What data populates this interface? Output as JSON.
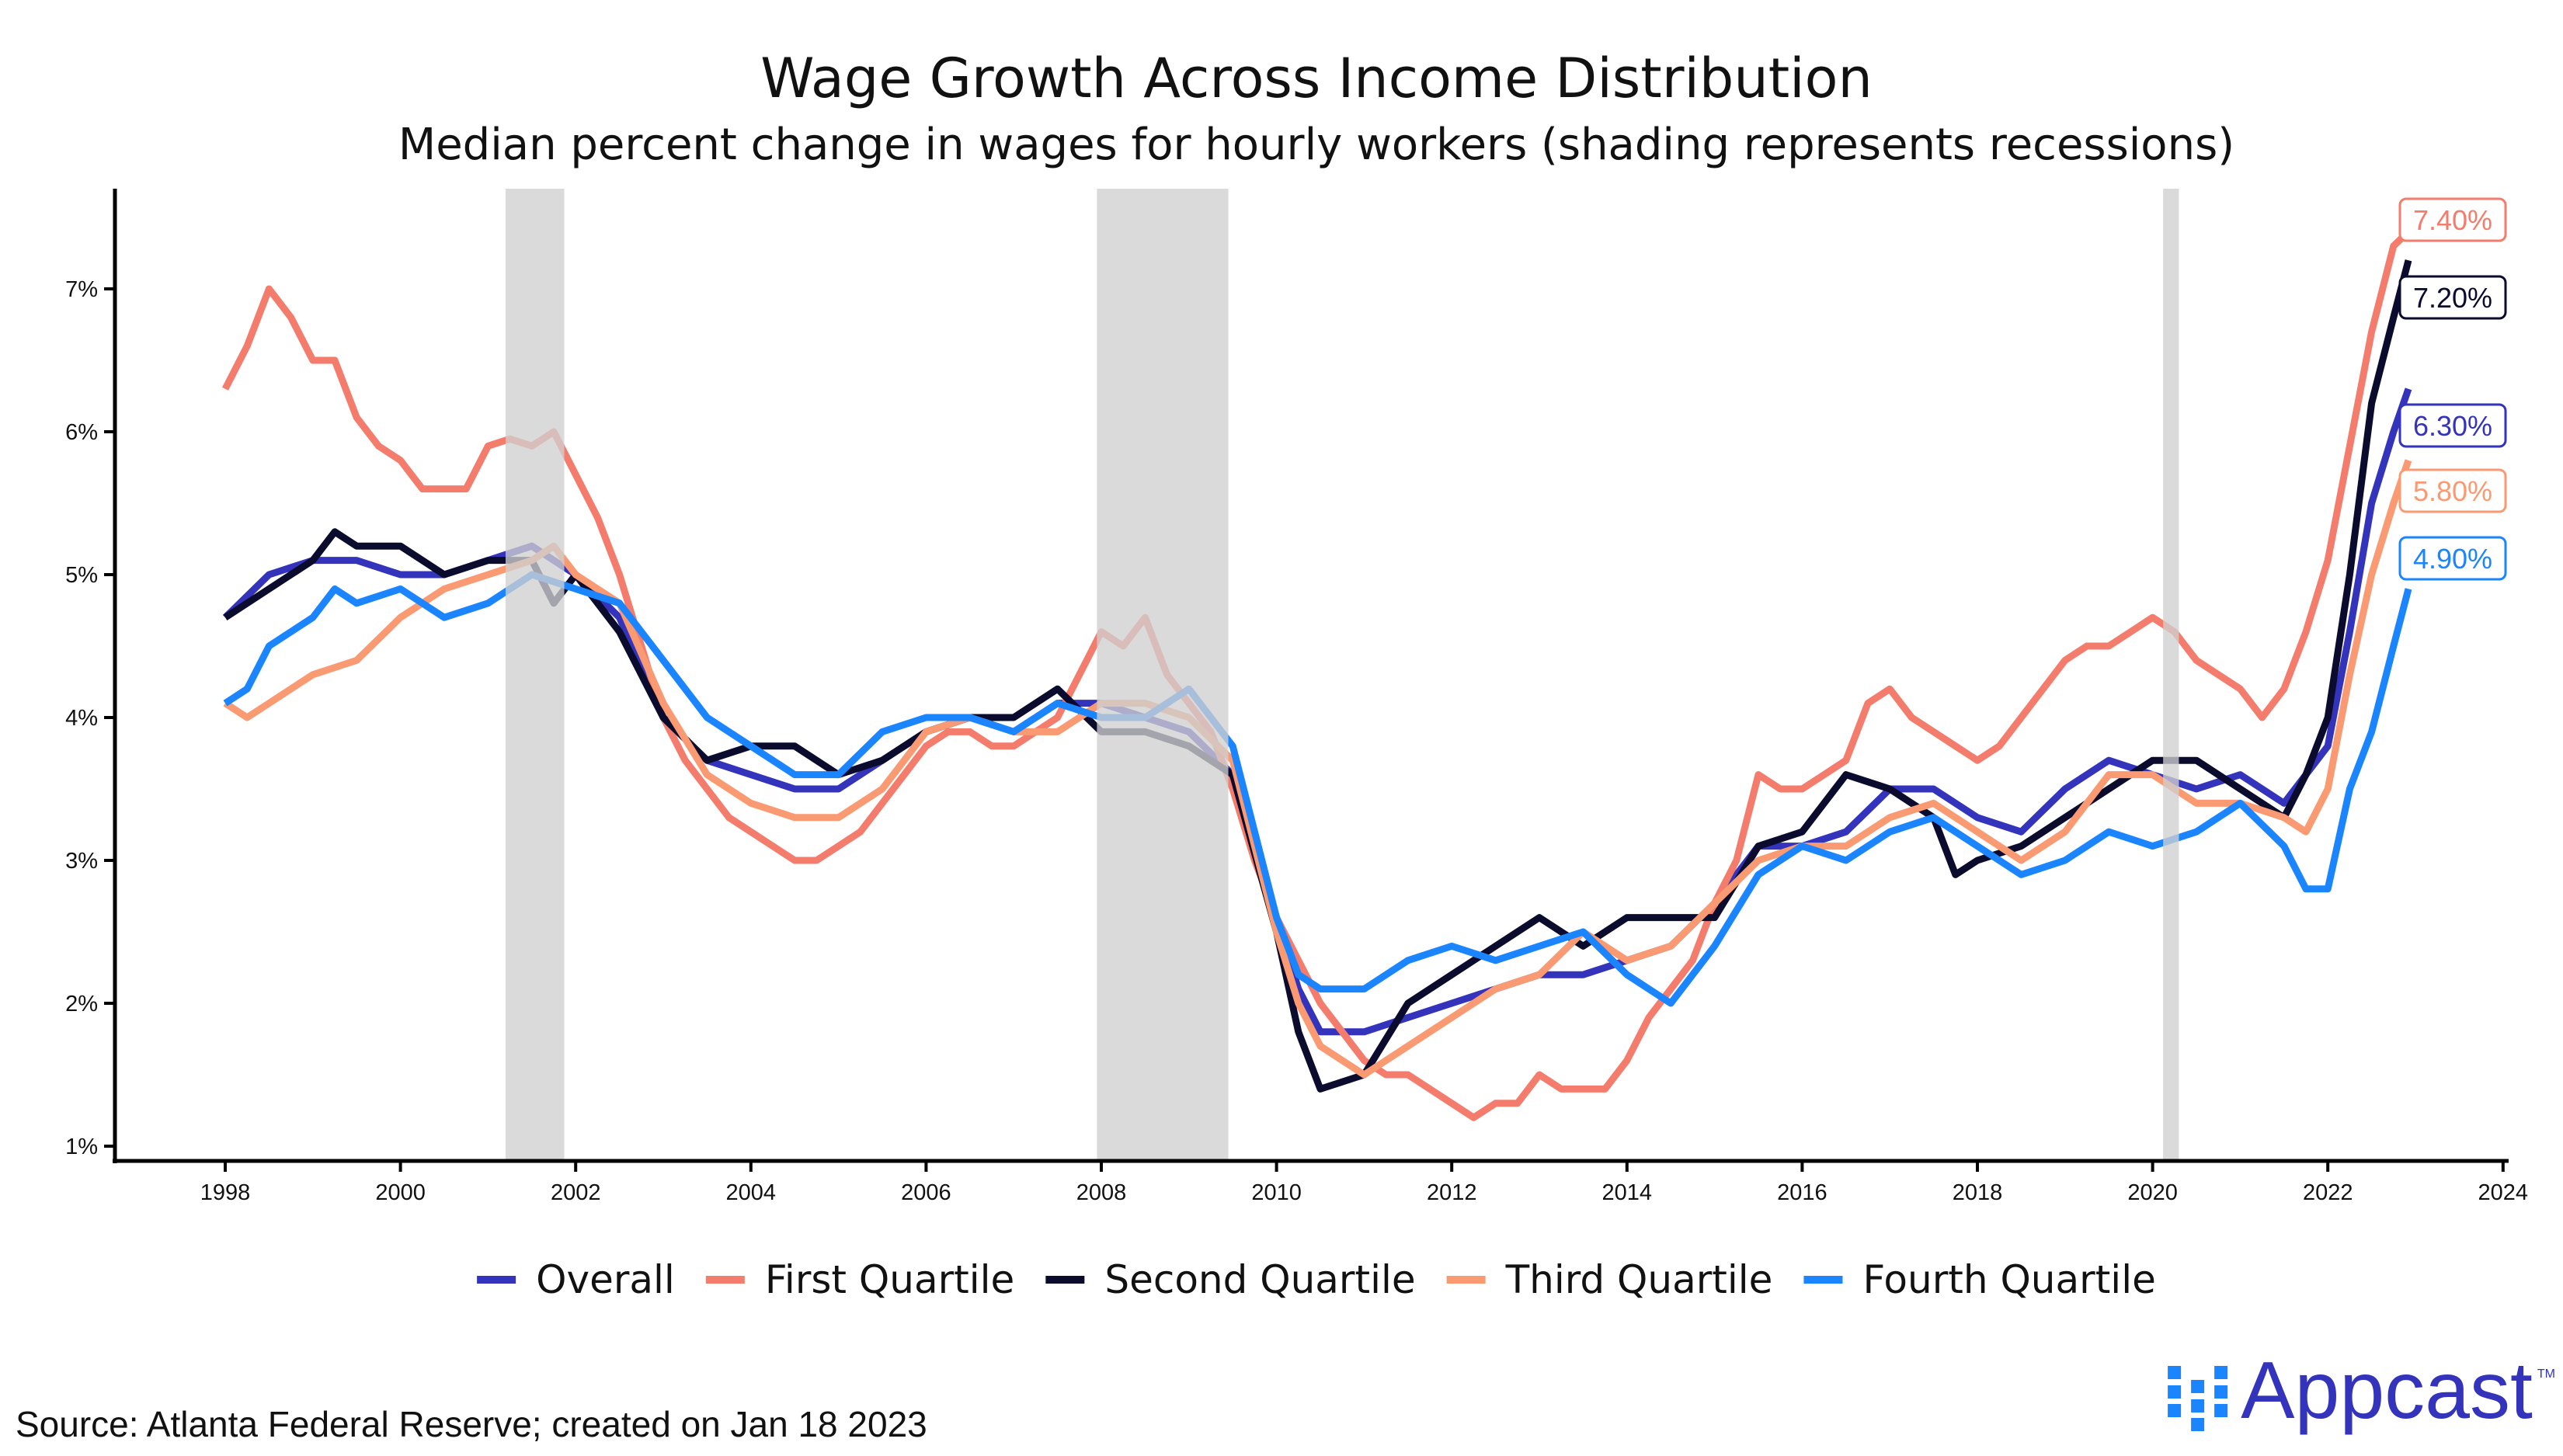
{
  "chart_data": {
    "type": "line",
    "title": "Wage Growth Across Income Distribution",
    "subtitle": "Median percent change in wages for hourly workers (shading represents recessions)",
    "xlabel": "",
    "ylabel": "",
    "xlim": [
      1996.8,
      2024
    ],
    "ylim": [
      0.9,
      7.7
    ],
    "x_ticks": [
      "1998",
      "2000",
      "2002",
      "2004",
      "2006",
      "2008",
      "2010",
      "2012",
      "2014",
      "2016",
      "2018",
      "2020",
      "2022",
      "2024"
    ],
    "y_ticks": [
      "1%",
      "2%",
      "3%",
      "4%",
      "5%",
      "6%",
      "7%"
    ],
    "grid": false,
    "legend_position": "bottom",
    "recessions": [
      [
        2001.2,
        2001.87
      ],
      [
        2007.95,
        2009.45
      ],
      [
        2020.12,
        2020.3
      ]
    ],
    "series": [
      {
        "name": "Overall",
        "color": "#3333BB",
        "end_label": "6.30%",
        "x": [
          1998,
          1998.5,
          1999,
          1999.5,
          2000,
          2000.5,
          2001,
          2001.5,
          2002,
          2002.5,
          2003,
          2003.5,
          2004,
          2004.5,
          2005,
          2005.5,
          2006,
          2006.5,
          2007,
          2007.5,
          2008,
          2008.5,
          2009,
          2009.5,
          2010,
          2010.25,
          2010.5,
          2011,
          2011.5,
          2012,
          2012.5,
          2013,
          2013.5,
          2014,
          2014.5,
          2015,
          2015.5,
          2016,
          2016.5,
          2017,
          2017.5,
          2018,
          2018.5,
          2019,
          2019.5,
          2020,
          2020.5,
          2021,
          2021.5,
          2022,
          2022.25,
          2022.5,
          2022.75,
          2022.92
        ],
        "y": [
          4.7,
          5.0,
          5.1,
          5.1,
          5.0,
          5.0,
          5.1,
          5.2,
          5.0,
          4.7,
          4.0,
          3.7,
          3.6,
          3.5,
          3.5,
          3.7,
          3.9,
          4.0,
          3.9,
          4.1,
          4.1,
          4.0,
          3.9,
          3.6,
          2.6,
          2.1,
          1.8,
          1.8,
          1.9,
          2.0,
          2.1,
          2.2,
          2.2,
          2.3,
          2.4,
          2.7,
          3.1,
          3.1,
          3.2,
          3.5,
          3.5,
          3.3,
          3.2,
          3.5,
          3.7,
          3.6,
          3.5,
          3.6,
          3.4,
          3.8,
          4.6,
          5.5,
          6.0,
          6.3
        ]
      },
      {
        "name": "First Quartile",
        "color": "#F47C6C",
        "end_label": "7.40%",
        "x": [
          1998,
          1998.25,
          1998.5,
          1998.75,
          1999,
          1999.25,
          1999.5,
          1999.75,
          2000,
          2000.25,
          2000.5,
          2000.75,
          2001,
          2001.25,
          2001.5,
          2001.75,
          2002,
          2002.25,
          2002.5,
          2002.75,
          2003,
          2003.25,
          2003.5,
          2003.75,
          2004,
          2004.25,
          2004.5,
          2004.75,
          2005,
          2005.25,
          2005.5,
          2005.75,
          2006,
          2006.25,
          2006.5,
          2006.75,
          2007,
          2007.25,
          2007.5,
          2007.75,
          2008,
          2008.25,
          2008.5,
          2008.75,
          2009,
          2009.25,
          2009.5,
          2009.75,
          2010,
          2010.25,
          2010.5,
          2010.75,
          2011,
          2011.25,
          2011.5,
          2011.75,
          2012,
          2012.25,
          2012.5,
          2012.75,
          2013,
          2013.25,
          2013.5,
          2013.75,
          2014,
          2014.25,
          2014.5,
          2014.75,
          2015,
          2015.25,
          2015.5,
          2015.75,
          2016,
          2016.25,
          2016.5,
          2016.75,
          2017,
          2017.25,
          2017.5,
          2017.75,
          2018,
          2018.25,
          2018.5,
          2018.75,
          2019,
          2019.25,
          2019.5,
          2019.75,
          2020,
          2020.25,
          2020.5,
          2020.75,
          2021,
          2021.25,
          2021.5,
          2021.75,
          2022,
          2022.25,
          2022.5,
          2022.75,
          2022.92
        ],
        "y": [
          6.3,
          6.6,
          7.0,
          6.8,
          6.5,
          6.5,
          6.1,
          5.9,
          5.8,
          5.6,
          5.6,
          5.6,
          5.9,
          5.95,
          5.9,
          6.0,
          5.7,
          5.4,
          5.0,
          4.5,
          4.0,
          3.7,
          3.5,
          3.3,
          3.2,
          3.1,
          3.0,
          3.0,
          3.1,
          3.2,
          3.4,
          3.6,
          3.8,
          3.9,
          3.9,
          3.8,
          3.8,
          3.9,
          4.0,
          4.3,
          4.6,
          4.5,
          4.7,
          4.3,
          4.1,
          3.9,
          3.5,
          3.0,
          2.6,
          2.3,
          2.0,
          1.8,
          1.6,
          1.5,
          1.5,
          1.4,
          1.3,
          1.2,
          1.3,
          1.3,
          1.5,
          1.4,
          1.4,
          1.4,
          1.6,
          1.9,
          2.1,
          2.3,
          2.7,
          3.0,
          3.6,
          3.5,
          3.5,
          3.6,
          3.7,
          4.1,
          4.2,
          4.0,
          3.9,
          3.8,
          3.7,
          3.8,
          4.0,
          4.2,
          4.4,
          4.5,
          4.5,
          4.6,
          4.7,
          4.6,
          4.4,
          4.3,
          4.2,
          4.0,
          4.2,
          4.6,
          5.1,
          5.9,
          6.7,
          7.3,
          7.4
        ]
      },
      {
        "name": "Second Quartile",
        "color": "#0B0B2E",
        "end_label": "7.20%",
        "x": [
          1998,
          1998.5,
          1999,
          1999.25,
          1999.5,
          2000,
          2000.5,
          2001,
          2001.5,
          2001.75,
          2002,
          2002.5,
          2003,
          2003.5,
          2004,
          2004.5,
          2005,
          2005.5,
          2006,
          2006.5,
          2007,
          2007.5,
          2008,
          2008.5,
          2009,
          2009.5,
          2010,
          2010.25,
          2010.5,
          2011,
          2011.5,
          2012,
          2012.5,
          2013,
          2013.5,
          2014,
          2014.5,
          2015,
          2015.5,
          2016,
          2016.5,
          2017,
          2017.5,
          2017.75,
          2018,
          2018.5,
          2019,
          2019.5,
          2020,
          2020.5,
          2021,
          2021.5,
          2021.75,
          2022,
          2022.25,
          2022.5,
          2022.75,
          2022.92
        ],
        "y": [
          4.7,
          4.9,
          5.1,
          5.3,
          5.2,
          5.2,
          5.0,
          5.1,
          5.1,
          4.8,
          5.0,
          4.6,
          4.0,
          3.7,
          3.8,
          3.8,
          3.6,
          3.7,
          3.9,
          4.0,
          4.0,
          4.2,
          3.9,
          3.9,
          3.8,
          3.6,
          2.5,
          1.8,
          1.4,
          1.5,
          2.0,
          2.2,
          2.4,
          2.6,
          2.4,
          2.6,
          2.6,
          2.6,
          3.1,
          3.2,
          3.6,
          3.5,
          3.3,
          2.9,
          3.0,
          3.1,
          3.3,
          3.5,
          3.7,
          3.7,
          3.5,
          3.3,
          3.6,
          4.0,
          5.0,
          6.2,
          6.8,
          7.2
        ]
      },
      {
        "name": "Third Quartile",
        "color": "#F99A72",
        "end_label": "5.80%",
        "x": [
          1998,
          1998.25,
          1998.5,
          1999,
          1999.5,
          2000,
          2000.5,
          2001,
          2001.5,
          2001.75,
          2002,
          2002.5,
          2003,
          2003.5,
          2004,
          2004.5,
          2005,
          2005.5,
          2006,
          2006.5,
          2007,
          2007.5,
          2008,
          2008.5,
          2009,
          2009.5,
          2010,
          2010.25,
          2010.5,
          2011,
          2011.5,
          2012,
          2012.5,
          2013,
          2013.5,
          2014,
          2014.5,
          2015,
          2015.5,
          2016,
          2016.5,
          2017,
          2017.5,
          2018,
          2018.5,
          2019,
          2019.5,
          2020,
          2020.5,
          2021,
          2021.5,
          2021.75,
          2022,
          2022.25,
          2022.5,
          2022.75,
          2022.92
        ],
        "y": [
          4.1,
          4.0,
          4.1,
          4.3,
          4.4,
          4.7,
          4.9,
          5.0,
          5.1,
          5.2,
          5.0,
          4.8,
          4.1,
          3.6,
          3.4,
          3.3,
          3.3,
          3.5,
          3.9,
          4.0,
          3.9,
          3.9,
          4.1,
          4.1,
          4.0,
          3.7,
          2.5,
          2.0,
          1.7,
          1.5,
          1.7,
          1.9,
          2.1,
          2.2,
          2.5,
          2.3,
          2.4,
          2.7,
          3.0,
          3.1,
          3.1,
          3.3,
          3.4,
          3.2,
          3.0,
          3.2,
          3.6,
          3.6,
          3.4,
          3.4,
          3.3,
          3.2,
          3.5,
          4.3,
          5.0,
          5.5,
          5.8
        ]
      },
      {
        "name": "Fourth Quartile",
        "color": "#1A85FF",
        "end_label": "4.90%",
        "x": [
          1998,
          1998.25,
          1998.5,
          1999,
          1999.25,
          1999.5,
          2000,
          2000.5,
          2001,
          2001.5,
          2002,
          2002.5,
          2003,
          2003.5,
          2004,
          2004.5,
          2005,
          2005.5,
          2006,
          2006.5,
          2007,
          2007.5,
          2008,
          2008.5,
          2009,
          2009.5,
          2010,
          2010.25,
          2010.5,
          2011,
          2011.5,
          2012,
          2012.5,
          2013,
          2013.5,
          2014,
          2014.5,
          2015,
          2015.5,
          2016,
          2016.5,
          2017,
          2017.5,
          2018,
          2018.5,
          2019,
          2019.5,
          2020,
          2020.5,
          2021,
          2021.5,
          2021.75,
          2022,
          2022.25,
          2022.5,
          2022.75,
          2022.92
        ],
        "y": [
          4.1,
          4.2,
          4.5,
          4.7,
          4.9,
          4.8,
          4.9,
          4.7,
          4.8,
          5.0,
          4.9,
          4.8,
          4.4,
          4.0,
          3.8,
          3.6,
          3.6,
          3.9,
          4.0,
          4.0,
          3.9,
          4.1,
          4.0,
          4.0,
          4.2,
          3.8,
          2.6,
          2.2,
          2.1,
          2.1,
          2.3,
          2.4,
          2.3,
          2.4,
          2.5,
          2.2,
          2.0,
          2.4,
          2.9,
          3.1,
          3.0,
          3.2,
          3.3,
          3.1,
          2.9,
          3.0,
          3.2,
          3.1,
          3.2,
          3.4,
          3.1,
          2.8,
          2.8,
          3.5,
          3.9,
          4.5,
          4.9
        ]
      }
    ]
  },
  "footer": {
    "source": "Source: Atlanta Federal Reserve; created on Jan 18 2023",
    "logo_text": "Appcast",
    "logo_tm": "TM"
  }
}
